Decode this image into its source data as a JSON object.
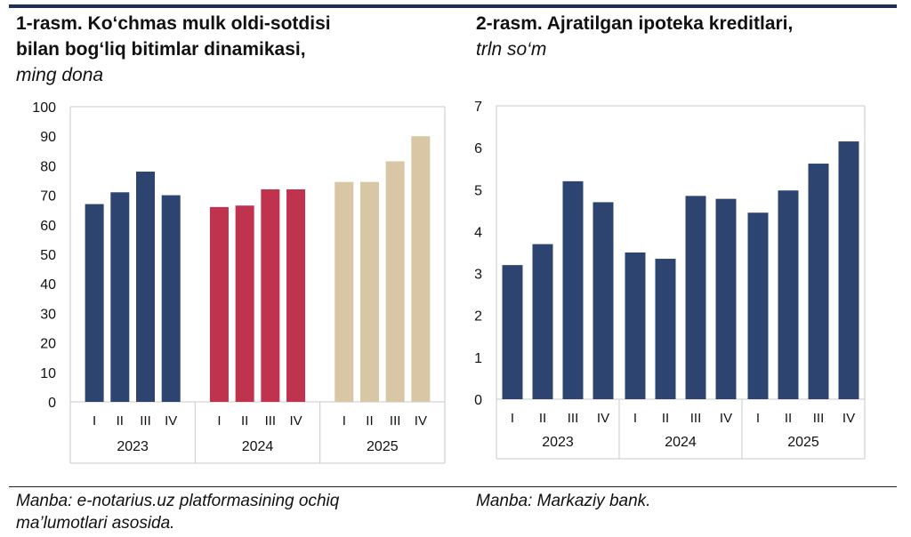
{
  "colors": {
    "rule": "#1f2d5a",
    "series_2023": "#2e4470",
    "series_2024": "#c0334f",
    "series_2025": "#d8c6a5",
    "mortgage": "#2e4470",
    "axis": "#c8c8c8"
  },
  "left": {
    "title_line1": "1-rasm. Ko‘chmas mulk oldi-sotdisi",
    "title_line2": "bilan bog‘liq bitimlar dinamikasi,",
    "unit": "ming dona",
    "source_line1": "Manba: e-notarius.uz platformasining ochiq",
    "source_line2": "ma’lumotlari asosida."
  },
  "right": {
    "title_line1": "2-rasm. Ajratilgan ipoteka kreditlari,",
    "unit": "trln so‘m",
    "source_line1": "Manba: Markaziy bank."
  },
  "chart_data": [
    {
      "type": "bar",
      "title": "1-rasm. Ko‘chmas mulk oldi-sotdisi bilan bog‘liq bitimlar dinamikasi",
      "ylabel": "ming dona",
      "ylim": [
        0,
        100
      ],
      "yticks": [
        0,
        10,
        20,
        30,
        40,
        50,
        60,
        70,
        80,
        90,
        100
      ],
      "groups": [
        {
          "year": "2023",
          "categories": [
            "I",
            "II",
            "III",
            "IV"
          ],
          "values": [
            67,
            71,
            78,
            70
          ]
        },
        {
          "year": "2024",
          "categories": [
            "I",
            "II",
            "III",
            "IV"
          ],
          "values": [
            66,
            66.5,
            72,
            72
          ]
        },
        {
          "year": "2025",
          "categories": [
            "I",
            "II",
            "III",
            "IV"
          ],
          "values": [
            74.5,
            74.5,
            81.5,
            90
          ]
        }
      ]
    },
    {
      "type": "bar",
      "title": "2-rasm. Ajratilgan ipoteka kreditlari",
      "ylabel": "trln so‘m",
      "ylim": [
        0,
        7
      ],
      "yticks": [
        0,
        1,
        2,
        3,
        4,
        5,
        6,
        7
      ],
      "groups": [
        {
          "year": "2023",
          "categories": [
            "I",
            "II",
            "III",
            "IV"
          ],
          "values": [
            3.2,
            3.7,
            5.2,
            4.7
          ]
        },
        {
          "year": "2024",
          "categories": [
            "I",
            "II",
            "III",
            "IV"
          ],
          "values": [
            3.5,
            3.35,
            4.85,
            4.78
          ]
        },
        {
          "year": "2025",
          "categories": [
            "I",
            "II",
            "III",
            "IV"
          ],
          "values": [
            4.45,
            4.98,
            5.62,
            6.15
          ]
        }
      ]
    }
  ]
}
